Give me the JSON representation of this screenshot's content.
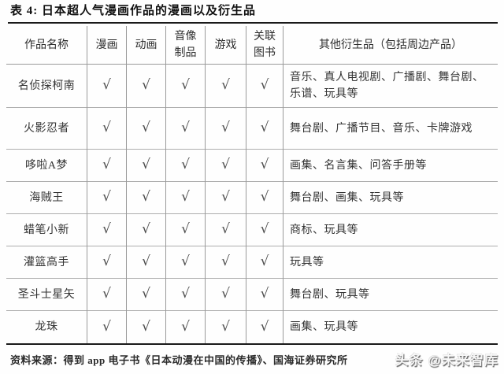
{
  "title": "表 4:  日本超人气漫画作品的漫画以及衍生品",
  "table": {
    "headers": [
      "作品名称",
      "漫画",
      "动画",
      "音像制品",
      "游戏",
      "关联图书",
      "其他衍生品（包括周边产品）"
    ],
    "check_symbol": "√",
    "rows": [
      {
        "name": "名侦探柯南",
        "checks": [
          true,
          true,
          true,
          true,
          true
        ],
        "derivatives": "音乐、真人电视剧、广播剧、舞台剧、乐谱、玩具等"
      },
      {
        "name": "火影忍者",
        "checks": [
          true,
          true,
          true,
          true,
          true
        ],
        "derivatives": "舞台剧、广播节目、音乐、卡牌游戏"
      },
      {
        "name": "哆啦A梦",
        "checks": [
          true,
          true,
          true,
          true,
          true
        ],
        "derivatives": "画集、名言集、问答手册等"
      },
      {
        "name": "海贼王",
        "checks": [
          true,
          true,
          true,
          true,
          true
        ],
        "derivatives": "舞台剧、画集、玩具等"
      },
      {
        "name": "蜡笔小新",
        "checks": [
          true,
          true,
          true,
          true,
          true
        ],
        "derivatives": "商标、玩具等"
      },
      {
        "name": "灌篮高手",
        "checks": [
          true,
          true,
          true,
          true,
          true
        ],
        "derivatives": "玩具等"
      },
      {
        "name": "圣斗士星矢",
        "checks": [
          true,
          true,
          true,
          true,
          true
        ],
        "derivatives": "舞台剧、玩具等"
      },
      {
        "name": "龙珠",
        "checks": [
          true,
          true,
          true,
          true,
          true
        ],
        "derivatives": "画集、玩具等"
      }
    ]
  },
  "footer": {
    "source": "资料来源：得到 app 电子书《日本动漫在中国的传播》、国海证券研究所"
  },
  "watermark": {
    "text": "头条 @未来智库"
  },
  "colors": {
    "rule": "#1a1a1a",
    "cell_border": "#9a9a9a",
    "row_border": "#aeaeae",
    "text": "#343434",
    "check": "#4d4d4d"
  }
}
